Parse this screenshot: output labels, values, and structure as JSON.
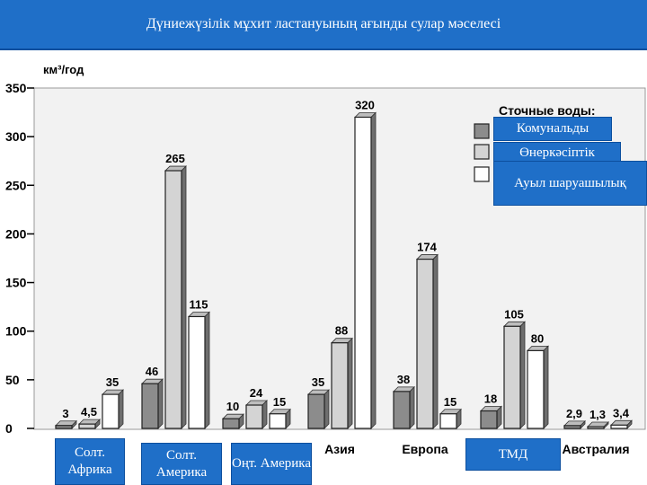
{
  "slide_title": "Дүниежүзілік мұхит ластануының ағынды сулар мәселесі",
  "chart_data": {
    "type": "bar",
    "y_unit": "км³/год",
    "ylim": [
      0,
      350
    ],
    "yticks": [
      0,
      50,
      100,
      150,
      200,
      250,
      300,
      350
    ],
    "grid": false,
    "legend_title": "Сточные воды:",
    "legend_position": "top-right",
    "categories": [
      "Солт. Африка",
      "Солт. Америка",
      "Оңт. Америка",
      "Азия",
      "Европа",
      "ТМД",
      "Австралия"
    ],
    "category_labels_printed": [
      "",
      "",
      "",
      "Азия",
      "Европа",
      "",
      "Австралия"
    ],
    "series": [
      {
        "name": "Комунальды",
        "color": "#8c8c8c",
        "values": [
          3,
          46,
          10,
          35,
          38,
          18,
          2.9
        ]
      },
      {
        "name": "Өнеркәсіптік",
        "color": "#d4d4d4",
        "values": [
          4.5,
          265,
          24,
          88,
          174,
          105,
          1.3
        ]
      },
      {
        "name": "Ауыл шаруашылық",
        "color": "#ffffff",
        "values": [
          35,
          115,
          15,
          320,
          15,
          80,
          3.4
        ]
      }
    ],
    "value_labels": [
      [
        "3",
        "4,5",
        "35"
      ],
      [
        "46",
        "265",
        "115"
      ],
      [
        "10",
        "24",
        "15"
      ],
      [
        "35",
        "88",
        "320"
      ],
      [
        "38",
        "174",
        "15"
      ],
      [
        "18",
        "105",
        "80"
      ],
      [
        "2,9",
        "1,3",
        "3,4"
      ]
    ]
  },
  "overlay_labels": {
    "north_africa": "Солт. Африка",
    "north_america": "Солт. Америка",
    "south_america": "Оңт. Америка",
    "cis": "ТМД",
    "legend_municipal": "Комунальды",
    "legend_industrial": "Өнеркәсіптік",
    "legend_agricultural": "Ауыл шаруашылық"
  }
}
